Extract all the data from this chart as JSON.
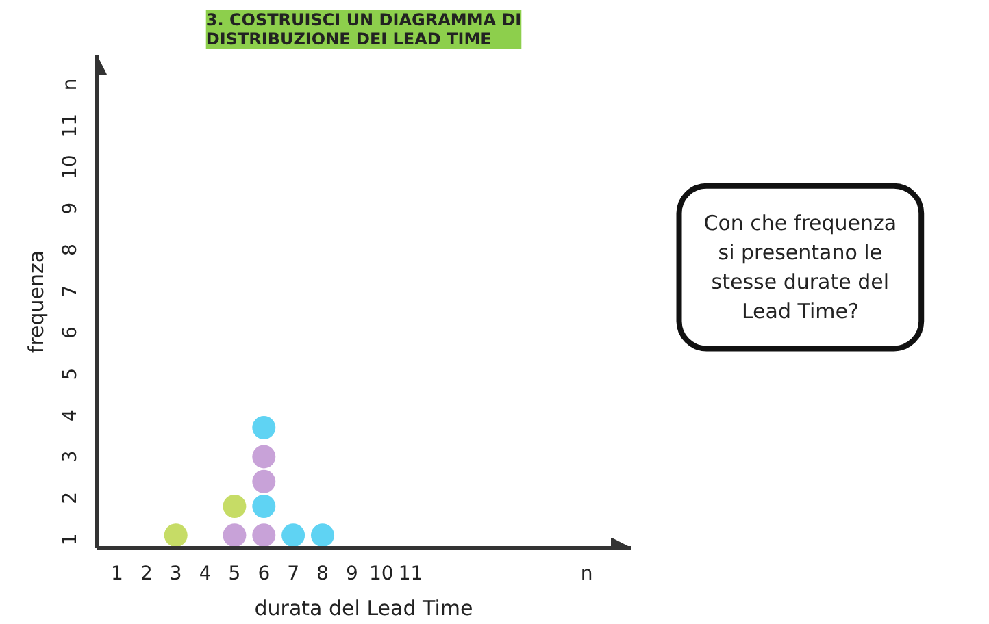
{
  "chart_data": {
    "type": "scatter",
    "title": "3. COSTRUISCI UN DIAGRAMMA DI\nDISTRIBUZIONE DEI LEAD TIME",
    "xlabel": "durata del Lead Time",
    "ylabel": "frequenza",
    "annotations": [
      "Con che frequenza\nsi presentano le\nstesse durate del\nLead Time?"
    ],
    "series": [
      {
        "color": "#c6dc66",
        "x": [
          3,
          5
        ],
        "values": [
          1.1,
          1.8
        ]
      },
      {
        "color": "#c8a2d8",
        "x": [
          5,
          6,
          6,
          6
        ],
        "values": [
          1.1,
          1.1,
          2.4,
          3.0
        ]
      },
      {
        "color": "#5fd3f3",
        "x": [
          6,
          6,
          7,
          8
        ],
        "values": [
          1.8,
          3.7,
          1.1,
          1.1
        ]
      }
    ],
    "marker": "circle",
    "grid": false,
    "xlim": [
      0.3,
      18.5
    ],
    "ylim": [
      0.79,
      12.7
    ],
    "xticks": [
      1,
      2,
      3,
      4,
      5,
      6,
      7,
      8,
      9,
      10,
      11,
      {
        "value": 17,
        "label": "n"
      }
    ],
    "yticks": [
      1,
      2,
      3,
      4,
      5,
      6,
      7,
      8,
      9,
      10,
      11,
      {
        "value": 12,
        "label": "n"
      }
    ]
  }
}
